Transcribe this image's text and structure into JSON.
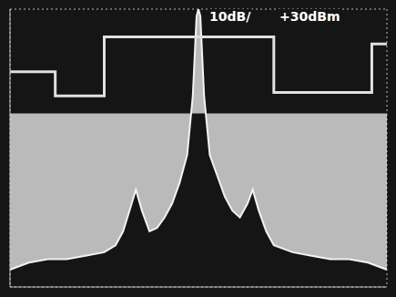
{
  "chart_data": {
    "type": "area",
    "annotations": [
      "10dB/",
      "+30dBm"
    ],
    "xlim": [
      0,
      10
    ],
    "xticks": [
      0,
      1,
      2,
      3,
      4,
      5,
      6,
      7,
      8,
      9,
      10
    ],
    "ylim": [
      -50,
      30
    ],
    "yticks": [
      -50,
      -40,
      -30,
      -20,
      -10,
      0,
      10,
      20,
      30
    ],
    "grid": true,
    "tick_labels": false,
    "series": [
      {
        "type": "area",
        "color": "#f2f2f2",
        "x": [
          0,
          0.5,
          1,
          1.5,
          2,
          2.5,
          2.8,
          3.0,
          3.2,
          3.34,
          3.5,
          3.7,
          3.9,
          4.1,
          4.3,
          4.5,
          4.7,
          4.85,
          4.95,
          5.0,
          5.05,
          5.15,
          5.3,
          5.5,
          5.7,
          5.9,
          6.1,
          6.3,
          6.44,
          6.6,
          6.8,
          7.0,
          7.5,
          8,
          8.5,
          9,
          9.5,
          10
        ],
        "values": [
          -45,
          -43,
          -42,
          -42,
          -41,
          -40,
          -38,
          -34,
          -27,
          -22,
          -28,
          -34,
          -33,
          -30,
          -26,
          -20,
          -12,
          5,
          28,
          30,
          28,
          5,
          -12,
          -18,
          -24,
          -28,
          -30,
          -26,
          -22,
          -28,
          -34,
          -38,
          -40,
          -41,
          -42,
          -42,
          -43,
          -45
        ]
      },
      {
        "type": "line",
        "line_style": "step",
        "color": "#e0e0e0",
        "x": [
          0,
          1.2,
          2.5,
          7.0,
          9.6,
          10
        ],
        "values": [
          12,
          5,
          22,
          6,
          20,
          20
        ]
      }
    ]
  }
}
